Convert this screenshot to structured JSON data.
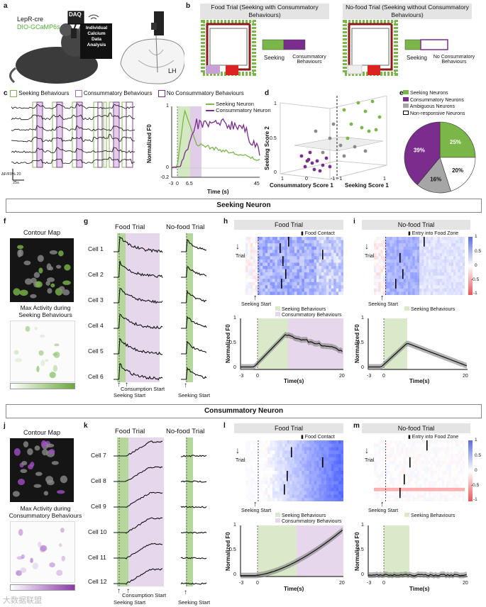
{
  "panels": {
    "a": "a",
    "b": "b",
    "c": "c",
    "d": "d",
    "e": "e",
    "f": "f",
    "g": "g",
    "h": "h",
    "i": "i",
    "j": "j",
    "k": "k",
    "l": "l",
    "m": "m"
  },
  "a": {
    "mouse_line1": "LepR-cre",
    "mouse_line2": "DIO-GCaMP6s",
    "daq": "DAQ",
    "analysis": "Individual\nCalcium\nData\nAnalysis",
    "region": "LH"
  },
  "b": {
    "food_title": "Food Trial (Seeking with Consummatory Behaviours)",
    "nofood_title": "No-food Trial (Seeking without Consummatory Behaviours)",
    "seeking": "Seeking",
    "consummatory": "Consummatory Behaviours",
    "no_consummatory": "No Consummatory Behaviours",
    "colors": {
      "seeking": "#7ab648",
      "consummatory": "#7b2d8e",
      "arrow": "#8b1a1a"
    }
  },
  "c": {
    "legend": [
      "Seeking Behaviours",
      "Consummatory Behaviours",
      "No Consummatory Behaviours"
    ],
    "scale": "ΔF/F0% 20",
    "time_scale": "25s",
    "inset_legend": [
      "Seeking Neuron",
      "Consummatory Neuron"
    ],
    "ylabel": "Normalized F0",
    "xlabel": "Time (s)",
    "xticks": [
      "-3",
      "0",
      "6.5",
      "45"
    ],
    "yticks": [
      "1",
      "0",
      "-0.2"
    ]
  },
  "d": {
    "ylabel": "Seeking Score 2",
    "xlabel1": "Consummatory Score 1",
    "xlabel2": "Seeking Score 1",
    "ticks": [
      "1",
      "0.5",
      "0",
      "1",
      "0",
      "-1",
      "-1",
      "1"
    ]
  },
  "e": {
    "legend": [
      "Seeking  Neurons",
      "Consummatory Neurons",
      "Ambiguous Neurons",
      "Non-responsive Neurons"
    ],
    "chart_data": {
      "type": "pie",
      "labels": [
        "Seeking Neurons",
        "Non-responsive Neurons",
        "Ambiguous Neurons",
        "Consummatory Neurons"
      ],
      "values": [
        25,
        20,
        16,
        39
      ],
      "colors": [
        "#7ab648",
        "#ffffff",
        "#a6a6a6",
        "#7b2d8e"
      ]
    }
  },
  "seeking_banner": "Seeking Neuron",
  "consummatory_banner": "Consummatory Neuron",
  "f": {
    "contour": "Contour Map",
    "max_activity": "Max Activity during\nSeeking Behaviours"
  },
  "g": {
    "food": "Food Trial",
    "nofood": "No-food Trial",
    "cells": [
      "Cell 1",
      "Cell 2",
      "Cell 3",
      "Cell 4",
      "Cell 5",
      "Cell 6"
    ],
    "consumption_start": "Consumption Start",
    "seeking_start": "Seeking Start",
    "seeking_start2": "Seeking Start"
  },
  "h": {
    "title": "Food Trial",
    "marker": "Food Contact",
    "trials": "Trials",
    "seeking_start": "Seeking Start",
    "legend": [
      "Seeking Behaviours",
      "Consummatory Behaviours"
    ],
    "ylabel": "Normalized F0",
    "xlabel": "Time(s)",
    "xticks": [
      "-3",
      "0",
      "20"
    ],
    "yticks": [
      "1",
      "0.5",
      "0"
    ]
  },
  "i": {
    "title": "No-food  Trial",
    "marker": "Entry into Food Zone",
    "trials": "Trials",
    "seeking_start": "Seeking Start",
    "legend": [
      "Seeking Behaviours"
    ],
    "ylabel": "Normalized F0",
    "xlabel": "Time(s)",
    "xticks": [
      "-3",
      "0",
      "20"
    ],
    "yticks": [
      "1",
      "0.5",
      "0"
    ],
    "cbar": [
      "1",
      "0.5",
      "0",
      "-0.5",
      "-1"
    ]
  },
  "j": {
    "contour": "Contour Map",
    "max_activity": "Max Activity during\nConsummatory Behaviours"
  },
  "k": {
    "food": "Food Trial",
    "nofood": "No-food Trial",
    "cells": [
      "Cell 7",
      "Cell 8",
      "Cell 9",
      "Cell 10",
      "Cell 11",
      "Cell 12"
    ],
    "consumption_start": "Consumption Start",
    "seeking_start": "Seeking Start",
    "seeking_start2": "Seeking Start"
  },
  "l": {
    "title": "Food Trial",
    "marker": "Food Contact",
    "trials": "Trials",
    "seeking_start": "Seeking Start",
    "legend": [
      "Seeking Behaviours",
      "Consummatory Behaviours"
    ],
    "ylabel": "Normalized F0",
    "xlabel": "Time(s)",
    "xticks": [
      "-3",
      "0",
      "20"
    ],
    "yticks": [
      "1",
      "0.5",
      "0"
    ]
  },
  "m": {
    "title": "No-food Trial",
    "marker": "Entry into Food Zone",
    "trials": "Trials",
    "seeking_start": "Seeking Start",
    "legend": [
      "Seeking Behaviours"
    ],
    "ylabel": "Normalized F0",
    "xlabel": "Time(s)",
    "xticks": [
      "-3",
      "0",
      "20"
    ],
    "yticks": [
      "1",
      "0.5",
      "0"
    ],
    "cbar": [
      "1",
      "0.5",
      "0",
      "-0.5",
      "-1"
    ]
  },
  "watermark": "大数据联盟"
}
